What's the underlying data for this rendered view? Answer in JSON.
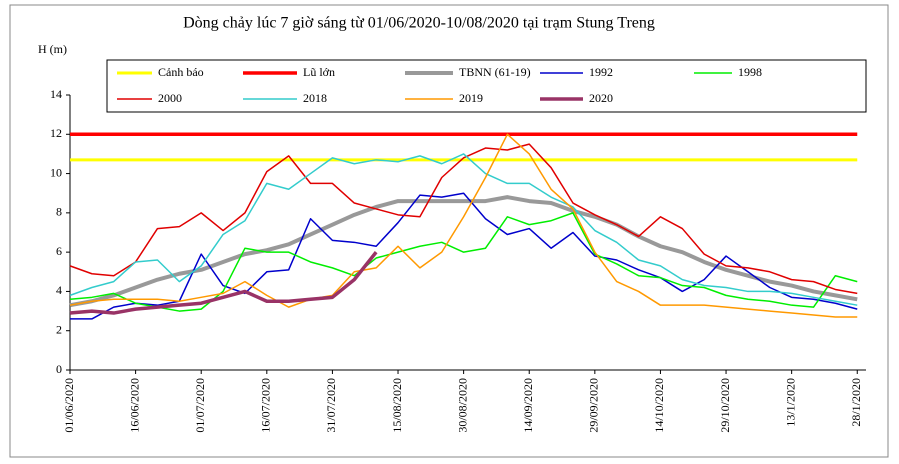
{
  "chart_data": {
    "type": "line",
    "title": "Dòng chảy lúc 7 giờ sáng từ 01/06/2020-10/08/2020 tại trạm Stung Treng",
    "y_label": "H (m)",
    "x": [
      0,
      5,
      10,
      15,
      20,
      25,
      30,
      35,
      40,
      45,
      50,
      55,
      60,
      65,
      70,
      75,
      80,
      85,
      90,
      95,
      100,
      105,
      110,
      115,
      120,
      125,
      130,
      135,
      140,
      145,
      150,
      155,
      160,
      165,
      170,
      175,
      180
    ],
    "xlim": [
      0,
      182
    ],
    "xticks": [
      {
        "value": 0,
        "label": "01/06/2020"
      },
      {
        "value": 15,
        "label": "16/06/2020"
      },
      {
        "value": 30,
        "label": "01/07/2020"
      },
      {
        "value": 45,
        "label": "16/07/2020"
      },
      {
        "value": 60,
        "label": "31/07/2020"
      },
      {
        "value": 75,
        "label": "15/08/2020"
      },
      {
        "value": 90,
        "label": "30/08/2020"
      },
      {
        "value": 105,
        "label": "14/09/2020"
      },
      {
        "value": 120,
        "label": "29/09/2020"
      },
      {
        "value": 135,
        "label": "14/10/2020"
      },
      {
        "value": 150,
        "label": "29/10/2020"
      },
      {
        "value": 165,
        "label": "13/1/2020"
      },
      {
        "value": 180,
        "label": "28/1/2020"
      }
    ],
    "ylim": [
      0,
      14
    ],
    "yticks": [
      0,
      2,
      4,
      6,
      8,
      10,
      12,
      14
    ],
    "series": [
      {
        "name": "Cảnh báo",
        "color": "#ffff00",
        "width": 3,
        "values": [
          10.7,
          10.7,
          10.7,
          10.7,
          10.7,
          10.7,
          10.7,
          10.7,
          10.7,
          10.7,
          10.7,
          10.7,
          10.7,
          10.7,
          10.7,
          10.7,
          10.7,
          10.7,
          10.7,
          10.7,
          10.7,
          10.7,
          10.7,
          10.7,
          10.7,
          10.7,
          10.7,
          10.7,
          10.7,
          10.7,
          10.7,
          10.7,
          10.7,
          10.7,
          10.7,
          10.7,
          10.7
        ]
      },
      {
        "name": "Lũ lớn",
        "color": "#ff0000",
        "width": 3.5,
        "values": [
          12,
          12,
          12,
          12,
          12,
          12,
          12,
          12,
          12,
          12,
          12,
          12,
          12,
          12,
          12,
          12,
          12,
          12,
          12,
          12,
          12,
          12,
          12,
          12,
          12,
          12,
          12,
          12,
          12,
          12,
          12,
          12,
          12,
          12,
          12,
          12,
          12
        ]
      },
      {
        "name": "TBNN (61-19)",
        "color": "#999999",
        "width": 4,
        "values": [
          3.3,
          3.5,
          3.8,
          4.2,
          4.6,
          4.9,
          5.1,
          5.5,
          5.9,
          6.1,
          6.4,
          6.9,
          7.4,
          7.9,
          8.3,
          8.6,
          8.6,
          8.6,
          8.6,
          8.6,
          8.8,
          8.6,
          8.5,
          8.1,
          7.8,
          7.4,
          6.8,
          6.3,
          6.0,
          5.5,
          5.1,
          4.8,
          4.5,
          4.3,
          4.0,
          3.8,
          3.6
        ]
      },
      {
        "name": "1992",
        "color": "#0000cc",
        "width": 1.5,
        "values": [
          2.6,
          2.6,
          3.2,
          3.4,
          3.3,
          3.5,
          5.9,
          4.3,
          3.9,
          5.0,
          5.1,
          7.7,
          6.6,
          6.5,
          6.3,
          7.5,
          8.9,
          8.8,
          9.0,
          7.7,
          6.9,
          7.2,
          6.2,
          7.0,
          5.8,
          5.6,
          5.1,
          4.7,
          4.0,
          4.6,
          5.8,
          5.0,
          4.2,
          3.7,
          3.6,
          3.4,
          3.1
        ]
      },
      {
        "name": "1998",
        "color": "#00ee00",
        "width": 1.5,
        "values": [
          3.6,
          3.7,
          3.9,
          3.4,
          3.2,
          3.0,
          3.1,
          4.0,
          6.2,
          6.0,
          6.0,
          5.5,
          5.2,
          4.8,
          5.7,
          6.0,
          6.3,
          6.5,
          6.0,
          6.2,
          7.8,
          7.4,
          7.6,
          8.0,
          5.9,
          5.4,
          4.8,
          4.7,
          4.3,
          4.2,
          3.8,
          3.6,
          3.5,
          3.3,
          3.2,
          4.8,
          4.5
        ]
      },
      {
        "name": "2000",
        "color": "#e00000",
        "width": 1.5,
        "values": [
          5.3,
          4.9,
          4.8,
          5.5,
          7.2,
          7.3,
          8.0,
          7.1,
          8.0,
          10.1,
          10.9,
          9.5,
          9.5,
          8.5,
          8.2,
          7.9,
          7.8,
          9.8,
          10.8,
          11.3,
          11.2,
          11.5,
          10.3,
          8.5,
          7.9,
          7.4,
          6.8,
          7.8,
          7.2,
          5.9,
          5.3,
          5.2,
          5.0,
          4.6,
          4.5,
          4.1,
          3.9
        ]
      },
      {
        "name": "2018",
        "color": "#33cccc",
        "width": 1.5,
        "values": [
          3.8,
          4.2,
          4.5,
          5.5,
          5.6,
          4.5,
          5.3,
          6.9,
          7.6,
          9.5,
          9.2,
          10.0,
          10.8,
          10.5,
          10.7,
          10.6,
          10.9,
          10.5,
          11.0,
          10.0,
          9.5,
          9.5,
          8.8,
          8.3,
          7.1,
          6.5,
          5.6,
          5.3,
          4.6,
          4.3,
          4.2,
          4.0,
          4.0,
          3.9,
          3.7,
          3.5,
          3.3
        ]
      },
      {
        "name": "2019",
        "color": "#ff9900",
        "width": 1.5,
        "values": [
          3.3,
          3.5,
          3.6,
          3.6,
          3.6,
          3.5,
          3.7,
          3.9,
          4.5,
          3.8,
          3.2,
          3.6,
          3.8,
          5.0,
          5.2,
          6.3,
          5.2,
          6.0,
          7.8,
          9.8,
          12.0,
          11.0,
          9.2,
          8.2,
          6.0,
          4.5,
          4.0,
          3.3,
          3.3,
          3.3,
          3.2,
          3.1,
          3.0,
          2.9,
          2.8,
          2.7,
          2.7
        ]
      },
      {
        "name": "2020",
        "color": "#993366",
        "width": 3.5,
        "values": [
          2.9,
          3.0,
          2.9,
          3.1,
          3.2,
          3.3,
          3.4,
          3.7,
          4.0,
          3.5,
          3.5,
          3.6,
          3.7,
          4.6,
          6.0,
          null,
          null,
          null,
          null,
          null,
          null,
          null,
          null,
          null,
          null,
          null,
          null,
          null,
          null,
          null,
          null,
          null,
          null,
          null,
          null,
          null,
          null
        ]
      }
    ]
  }
}
